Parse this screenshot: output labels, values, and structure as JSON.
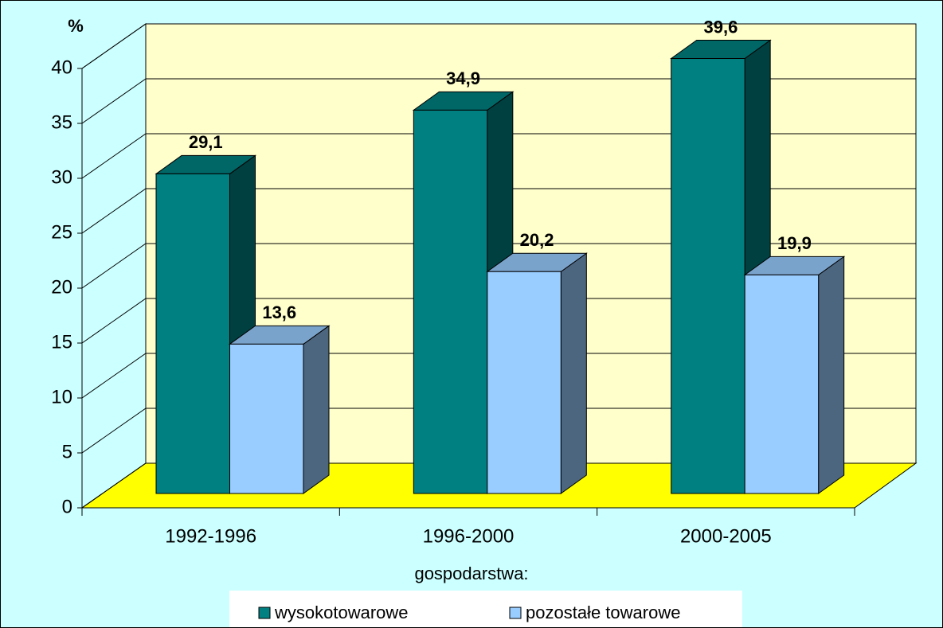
{
  "chart_data": {
    "type": "bar3d",
    "y_label": "%",
    "x_label": "gospodarstwa:",
    "categories": [
      "1992-1996",
      "1996-2000",
      "2000-2005"
    ],
    "series": [
      {
        "name": "wysokotowarowe",
        "color": "#008080",
        "values": [
          29.1,
          34.9,
          39.6
        ],
        "value_labels": [
          "29,1",
          "34,9",
          "39,6"
        ]
      },
      {
        "name": "pozostałe towarowe",
        "color": "#99ccff",
        "values": [
          13.6,
          20.2,
          19.9
        ],
        "value_labels": [
          "13,6",
          "20,2",
          "19,9"
        ]
      }
    ],
    "ylim": [
      0,
      40
    ],
    "yticks": [
      0,
      5,
      10,
      15,
      20,
      25,
      30,
      35,
      40
    ],
    "grid": true,
    "legend": "bottom"
  }
}
